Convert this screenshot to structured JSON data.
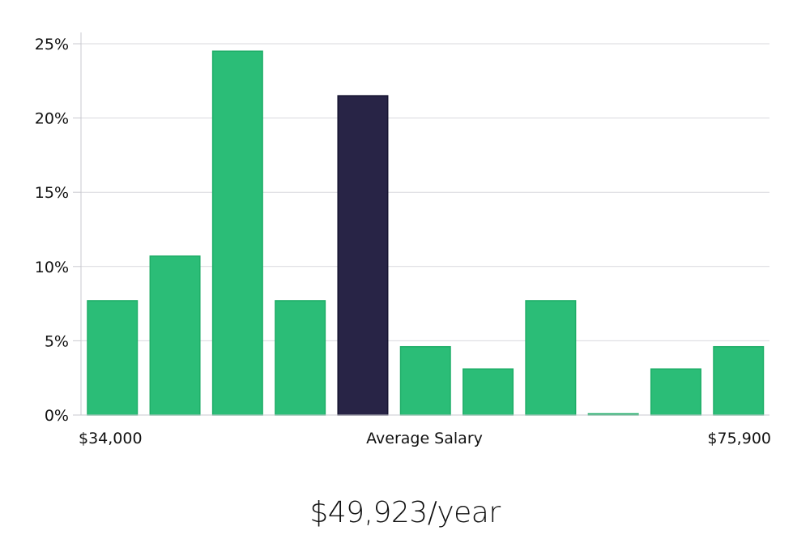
{
  "chart_data": {
    "type": "bar",
    "title": "",
    "xlabel": "Average Salary",
    "x_min_label": "$34,000",
    "x_max_label": "$75,900",
    "ylabel": "",
    "ylim": [
      0,
      25
    ],
    "yticks": [
      0,
      5,
      10,
      15,
      20,
      25
    ],
    "ytick_labels": [
      "0%",
      "5%",
      "10%",
      "15%",
      "20%",
      "25%"
    ],
    "grid": true,
    "values": [
      7.7,
      10.7,
      24.5,
      7.7,
      21.5,
      4.6,
      3.1,
      7.7,
      0,
      3.1,
      4.6
    ],
    "highlight_index": 4,
    "colors": {
      "bar": "#2bbd77",
      "bar_edge": "#1fae68",
      "highlight": "#282446",
      "highlight_edge": "#151330",
      "grid": "#d9d9de",
      "axis": "#c9c9cf"
    }
  },
  "summary": {
    "salary_text": "$49,923/year"
  }
}
